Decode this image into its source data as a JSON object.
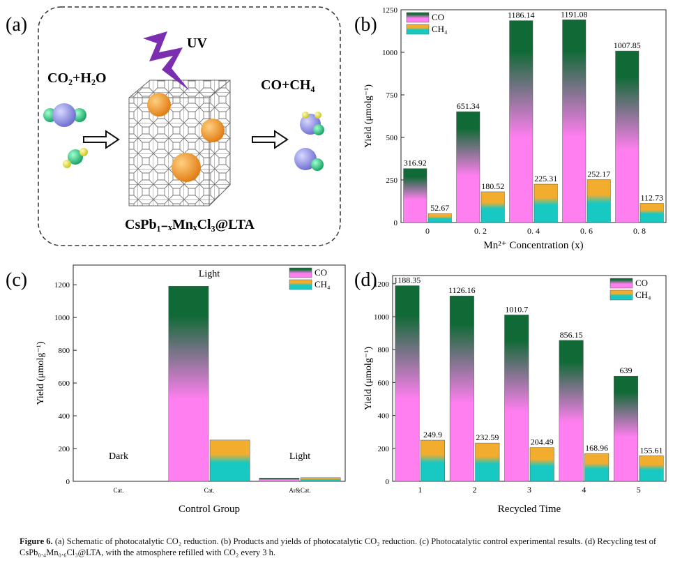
{
  "schematic": {
    "panel_label": "(a)",
    "uv": "UV",
    "reactants": "CO₂+H₂O",
    "products": "CO+CH₄",
    "material": "CsPb₁₋ₓMnₓCl₃@LTA"
  },
  "chart_data": [
    {
      "type": "bar",
      "panel_label": "(b)",
      "xlabel": "Mn²⁺ Concentration (x)",
      "ylabel": "Yield (μmolg⁻¹)",
      "categories": [
        "0",
        "0. 2",
        "0. 4",
        "0. 6",
        "0. 8"
      ],
      "series": [
        {
          "name": "CO",
          "color": [
            "#0f6a35",
            "#ff7ff0"
          ],
          "values": [
            316.92,
            651.34,
            1186.14,
            1191.08,
            1007.85
          ]
        },
        {
          "name": "CH₄",
          "color": [
            "#f2ac2e",
            "#18c8c2"
          ],
          "values": [
            52.67,
            180.52,
            225.31,
            252.17,
            112.73
          ]
        }
      ],
      "ylim": [
        0,
        1250
      ],
      "yticks": [
        0,
        250,
        500,
        750,
        1000,
        1250
      ],
      "data_labels": true,
      "legend": "upper left"
    },
    {
      "type": "bar",
      "panel_label": "(c)",
      "xlabel": "Control Group",
      "ylabel": "Yield (μmolg⁻¹)",
      "categories": [
        "Cat.",
        "Cat.",
        "Ar&Cat."
      ],
      "annotations": [
        "Dark",
        "Light",
        "Light"
      ],
      "series": [
        {
          "name": "CO",
          "color": [
            "#0f6a35",
            "#ff7ff0"
          ],
          "values": [
            0,
            1191,
            20
          ]
        },
        {
          "name": "CH₄",
          "color": [
            "#f2ac2e",
            "#18c8c2"
          ],
          "values": [
            0,
            252,
            22
          ]
        }
      ],
      "ylim": [
        0,
        1320
      ],
      "yticks": [
        0,
        200,
        400,
        600,
        800,
        1000,
        1200
      ],
      "data_labels": false,
      "legend": "upper right"
    },
    {
      "type": "bar",
      "panel_label": "(d)",
      "xlabel": "Recycled Time",
      "ylabel": "Yield (μmolg⁻¹)",
      "categories": [
        "1",
        "2",
        "3",
        "4",
        "5"
      ],
      "series": [
        {
          "name": "CO",
          "color": [
            "#0f6a35",
            "#ff7ff0"
          ],
          "values": [
            1188.35,
            1126.16,
            1010.7,
            856.15,
            639
          ]
        },
        {
          "name": "CH₄",
          "color": [
            "#f2ac2e",
            "#18c8c2"
          ],
          "values": [
            249.9,
            232.59,
            204.49,
            168.96,
            155.61
          ]
        }
      ],
      "ylim": [
        0,
        1250
      ],
      "yticks": [
        0,
        200,
        400,
        600,
        800,
        1000,
        1200
      ],
      "data_labels": true,
      "legend": "upper right"
    }
  ],
  "caption": {
    "label": "Figure 6.",
    "text": "(a) Schematic of photocatalytic CO₂ reduction. (b) Products and yields of photocatalytic CO₂ reduction. (c) Photocatalytic control experimental results. (d) Recycling test of CsPb₀.₄Mn₀.₆Cl₃@LTA, with the atmosphere refilled with CO₂ every 3 h."
  }
}
